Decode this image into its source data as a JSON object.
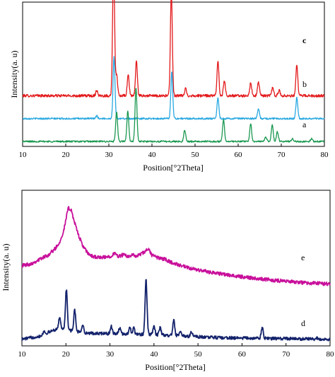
{
  "chart_data": [
    {
      "type": "line",
      "title": "",
      "xlabel": "Position[°2Theta]",
      "ylabel": "Intensity(a. u)",
      "xlim": [
        10,
        80
      ],
      "xticks": [
        "10",
        "20",
        "30",
        "40",
        "50",
        "60",
        "70",
        "80"
      ],
      "grid": false,
      "y_ticks_shown": false,
      "series": [
        {
          "name": "c",
          "color": "#e31a1c",
          "baseline": 0.33,
          "noise": 0.01,
          "peaks": [
            {
              "x": 27.2,
              "h": 0.04
            },
            {
              "x": 31.1,
              "h": 1.0
            },
            {
              "x": 31.8,
              "h": 0.15
            },
            {
              "x": 34.5,
              "h": 0.15
            },
            {
              "x": 36.4,
              "h": 0.25
            },
            {
              "x": 44.5,
              "h": 0.76
            },
            {
              "x": 47.8,
              "h": 0.05
            },
            {
              "x": 55.3,
              "h": 0.25
            },
            {
              "x": 56.8,
              "h": 0.11
            },
            {
              "x": 62.9,
              "h": 0.09
            },
            {
              "x": 64.7,
              "h": 0.1
            },
            {
              "x": 68.0,
              "h": 0.06
            },
            {
              "x": 69.5,
              "h": 0.04
            },
            {
              "x": 73.6,
              "h": 0.22
            }
          ]
        },
        {
          "name": "b",
          "color": "#29a8e0",
          "baseline": 0.165,
          "noise": 0.006,
          "peaks": [
            {
              "x": 27.2,
              "h": 0.02
            },
            {
              "x": 31.2,
              "h": 0.45
            },
            {
              "x": 44.6,
              "h": 0.34
            },
            {
              "x": 55.3,
              "h": 0.15
            },
            {
              "x": 64.7,
              "h": 0.07
            },
            {
              "x": 73.6,
              "h": 0.15
            }
          ]
        },
        {
          "name": "a",
          "color": "#1a9850",
          "baseline": 0.0,
          "noise": 0.006,
          "peaks": [
            {
              "x": 31.8,
              "h": 0.21
            },
            {
              "x": 34.4,
              "h": 0.22
            },
            {
              "x": 36.3,
              "h": 0.39
            },
            {
              "x": 47.6,
              "h": 0.08
            },
            {
              "x": 56.6,
              "h": 0.16
            },
            {
              "x": 62.9,
              "h": 0.13
            },
            {
              "x": 66.4,
              "h": 0.03
            },
            {
              "x": 67.9,
              "h": 0.12
            },
            {
              "x": 69.1,
              "h": 0.07
            },
            {
              "x": 72.6,
              "h": 0.02
            },
            {
              "x": 77.0,
              "h": 0.02
            }
          ]
        }
      ]
    },
    {
      "type": "line",
      "title": "",
      "xlabel": "Position[°2Theta]",
      "ylabel": "Intensity(a. u)",
      "xlim": [
        10,
        80
      ],
      "xticks": [
        "10",
        "20",
        "30",
        "40",
        "50",
        "60",
        "70",
        "80"
      ],
      "grid": false,
      "y_ticks_shown": false,
      "series": [
        {
          "name": "e",
          "color": "#c8109b",
          "noise": 0.012,
          "points": [
            [
              10,
              0.52
            ],
            [
              12,
              0.53
            ],
            [
              14,
              0.56
            ],
            [
              16,
              0.59
            ],
            [
              17.5,
              0.63
            ],
            [
              18.5,
              0.67
            ],
            [
              19.5,
              0.75
            ],
            [
              20.5,
              0.9
            ],
            [
              21.2,
              0.89
            ],
            [
              22,
              0.8
            ],
            [
              23,
              0.71
            ],
            [
              24,
              0.64
            ],
            [
              25,
              0.6
            ],
            [
              26,
              0.58
            ],
            [
              28,
              0.57
            ],
            [
              30,
              0.58
            ],
            [
              31,
              0.6
            ],
            [
              32,
              0.58
            ],
            [
              33,
              0.59
            ],
            [
              34,
              0.58
            ],
            [
              35,
              0.59
            ],
            [
              36,
              0.58
            ],
            [
              38,
              0.61
            ],
            [
              38.7,
              0.63
            ],
            [
              39.5,
              0.59
            ],
            [
              41,
              0.57
            ],
            [
              42.5,
              0.56
            ],
            [
              44,
              0.54
            ],
            [
              46,
              0.52
            ],
            [
              48,
              0.5
            ],
            [
              50,
              0.49
            ],
            [
              52,
              0.48
            ],
            [
              55,
              0.465
            ],
            [
              58,
              0.45
            ],
            [
              60,
              0.445
            ],
            [
              63,
              0.435
            ],
            [
              66,
              0.425
            ],
            [
              70,
              0.415
            ],
            [
              74,
              0.405
            ],
            [
              78,
              0.4
            ],
            [
              80,
              0.395
            ]
          ]
        },
        {
          "name": "d",
          "color": "#13226b",
          "noise": 0.01,
          "baseline": [
            [
              10,
              0.03
            ],
            [
              14,
              0.05
            ],
            [
              18,
              0.1
            ],
            [
              25,
              0.07
            ],
            [
              40,
              0.06
            ],
            [
              55,
              0.04
            ],
            [
              80,
              0.03
            ]
          ],
          "peaks": [
            {
              "x": 15.0,
              "h": 0.02
            },
            {
              "x": 18.6,
              "h": 0.08
            },
            {
              "x": 20.1,
              "h": 0.27
            },
            {
              "x": 22.0,
              "h": 0.14
            },
            {
              "x": 23.8,
              "h": 0.05
            },
            {
              "x": 30.3,
              "h": 0.05
            },
            {
              "x": 32.2,
              "h": 0.04
            },
            {
              "x": 34.5,
              "h": 0.05
            },
            {
              "x": 35.4,
              "h": 0.04
            },
            {
              "x": 38.2,
              "h": 0.36
            },
            {
              "x": 40.0,
              "h": 0.06
            },
            {
              "x": 41.4,
              "h": 0.05
            },
            {
              "x": 44.5,
              "h": 0.1
            },
            {
              "x": 46.0,
              "h": 0.03
            },
            {
              "x": 48.5,
              "h": 0.03
            },
            {
              "x": 64.6,
              "h": 0.07
            },
            {
              "x": 77.0,
              "h": 0.01
            }
          ]
        }
      ]
    }
  ]
}
